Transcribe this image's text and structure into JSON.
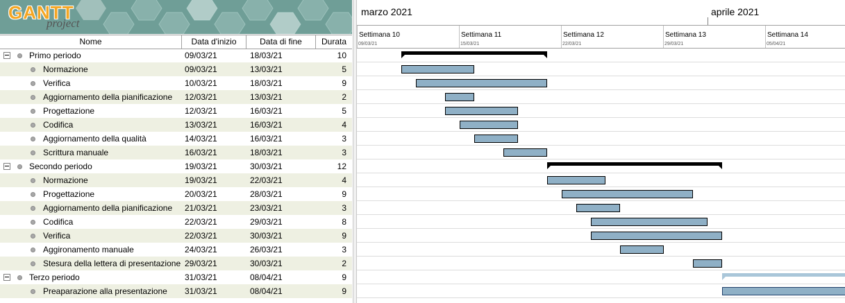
{
  "logo": {
    "main": "GANTT",
    "sub": "project"
  },
  "columns": {
    "name": "Nome",
    "start": "Data d'inizio",
    "end": "Data di fine",
    "duration": "Durata"
  },
  "months": [
    {
      "label": "marzo 2021",
      "offset_days": 0
    },
    {
      "label": "aprile 2021",
      "offset_days": 24
    }
  ],
  "weeks": [
    {
      "label": "Settimana  10",
      "date": "09/03/21"
    },
    {
      "label": "Settimana  11",
      "date": "15/03/21"
    },
    {
      "label": "Settimana  12",
      "date": "22/03/21"
    },
    {
      "label": "Settimana  13",
      "date": "29/03/21"
    },
    {
      "label": "Settimana  14",
      "date": "05/04/21"
    }
  ],
  "tasks": [
    {
      "type": "group",
      "name": "Primo periodo",
      "start": "09/03/21",
      "end": "18/03/21",
      "duration": "10",
      "d0": 3,
      "d1": 13
    },
    {
      "type": "task",
      "name": "Normazione",
      "start": "09/03/21",
      "end": "13/03/21",
      "duration": "5",
      "d0": 3,
      "d1": 8
    },
    {
      "type": "task",
      "name": "Verifica",
      "start": "10/03/21",
      "end": "18/03/21",
      "duration": "9",
      "d0": 4,
      "d1": 13
    },
    {
      "type": "task",
      "name": "Aggiornamento della pianificazione",
      "start": "12/03/21",
      "end": "13/03/21",
      "duration": "2",
      "d0": 6,
      "d1": 8
    },
    {
      "type": "task",
      "name": "Progettazione",
      "start": "12/03/21",
      "end": "16/03/21",
      "duration": "5",
      "d0": 6,
      "d1": 11
    },
    {
      "type": "task",
      "name": "Codifica",
      "start": "13/03/21",
      "end": "16/03/21",
      "duration": "4",
      "d0": 7,
      "d1": 11
    },
    {
      "type": "task",
      "name": "Aggiornamento della qualità",
      "start": "14/03/21",
      "end": "16/03/21",
      "duration": "3",
      "d0": 8,
      "d1": 11
    },
    {
      "type": "task",
      "name": "Scrittura manuale",
      "start": "16/03/21",
      "end": "18/03/21",
      "duration": "3",
      "d0": 10,
      "d1": 13
    },
    {
      "type": "group",
      "name": "Secondo periodo",
      "start": "19/03/21",
      "end": "30/03/21",
      "duration": "12",
      "d0": 13,
      "d1": 25
    },
    {
      "type": "task",
      "name": "Normazione",
      "start": "19/03/21",
      "end": "22/03/21",
      "duration": "4",
      "d0": 13,
      "d1": 17
    },
    {
      "type": "task",
      "name": "Progettazione",
      "start": "20/03/21",
      "end": "28/03/21",
      "duration": "9",
      "d0": 14,
      "d1": 23
    },
    {
      "type": "task",
      "name": "Aggiornamento della pianificazione",
      "start": "21/03/21",
      "end": "23/03/21",
      "duration": "3",
      "d0": 15,
      "d1": 18
    },
    {
      "type": "task",
      "name": "Codifica",
      "start": "22/03/21",
      "end": "29/03/21",
      "duration": "8",
      "d0": 16,
      "d1": 24
    },
    {
      "type": "task",
      "name": "Verifica",
      "start": "22/03/21",
      "end": "30/03/21",
      "duration": "9",
      "d0": 16,
      "d1": 25
    },
    {
      "type": "task",
      "name": "Aggironamento manuale",
      "start": "24/03/21",
      "end": "26/03/21",
      "duration": "3",
      "d0": 18,
      "d1": 21
    },
    {
      "type": "task",
      "name": "Stesura della lettera di presentazione",
      "start": "29/03/21",
      "end": "30/03/21",
      "duration": "2",
      "d0": 23,
      "d1": 25
    },
    {
      "type": "group",
      "name": "Terzo periodo",
      "start": "31/03/21",
      "end": "08/04/21",
      "duration": "9",
      "d0": 25,
      "d1": 34,
      "selected": true
    },
    {
      "type": "task",
      "name": "Preaparazione alla presentazione",
      "start": "31/03/21",
      "end": "08/04/21",
      "duration": "9",
      "d0": 25,
      "d1": 34,
      "selected": true
    }
  ]
}
